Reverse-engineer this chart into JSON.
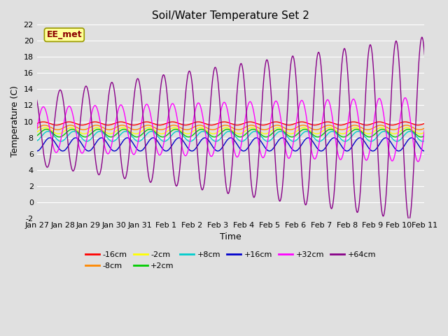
{
  "title": "Soil/Water Temperature Set 2",
  "xlabel": "Time",
  "ylabel": "Temperature (C)",
  "ylim": [
    -2,
    22
  ],
  "yticks": [
    -2,
    0,
    2,
    4,
    6,
    8,
    10,
    12,
    14,
    16,
    18,
    20,
    22
  ],
  "annotation_text": "EE_met",
  "annotation_color": "#8B0000",
  "annotation_bg": "#FFFF99",
  "annotation_edge": "#999900",
  "bg_color": "#E0E0E0",
  "grid_color": "#FFFFFF",
  "n_days": 15,
  "pts_per_day": 144,
  "xtick_labels": [
    "Jan 27",
    "Jan 28",
    "Jan 29",
    "Jan 30",
    "Jan 31",
    "Feb 1",
    "Feb 2",
    "Feb 3",
    "Feb 4",
    "Feb 5",
    "Feb 6",
    "Feb 7",
    "Feb 8",
    "Feb 9",
    "Feb 10",
    "Feb 11"
  ],
  "legend_rows": [
    [
      "-16cm",
      "#FF0000"
    ],
    [
      "-8cm",
      "#FF8800"
    ],
    [
      "-2cm",
      "#FFFF00"
    ],
    [
      "+2cm",
      "#00CC00"
    ],
    [
      "+8cm",
      "#00CCCC"
    ],
    [
      "+16cm",
      "#0000CC"
    ],
    [
      "+32cm",
      "#FF00FF"
    ],
    [
      "+64cm",
      "#880088"
    ]
  ],
  "linewidth": 1.0,
  "title_fontsize": 11,
  "axis_fontsize": 9,
  "tick_fontsize": 8,
  "legend_fontsize": 8
}
